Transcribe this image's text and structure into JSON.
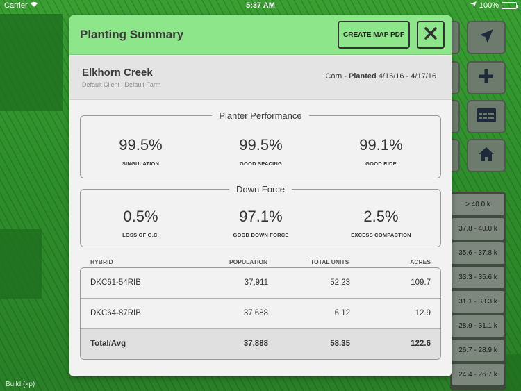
{
  "status_bar": {
    "carrier": "Carrier",
    "time": "5:37 AM",
    "battery": "100%"
  },
  "map": {
    "legend": [
      "> 40.0 k",
      "37.8 - 40.0 k",
      "35.6 - 37.8 k",
      "33.3 - 35.6 k",
      "31.1 - 33.3 k",
      "28.9 - 31.1 k",
      "26.7 - 28.9 k",
      "24.4 - 26.7 k"
    ],
    "build_label": "Build (kp)"
  },
  "modal": {
    "title": "Planting Summary",
    "create_pdf_label": "CREATE MAP PDF",
    "field_name": "Elkhorn Creek",
    "client_farm": "Default Client | Default Farm",
    "crop": "Corn -",
    "planted_label": "Planted",
    "planted_dates": "4/16/16 - 4/17/16",
    "planter_performance": {
      "title": "Planter Performance",
      "metrics": [
        {
          "value": "99.5%",
          "label": "SINGULATION"
        },
        {
          "value": "99.5%",
          "label": "GOOD SPACING"
        },
        {
          "value": "99.1%",
          "label": "GOOD RIDE"
        }
      ]
    },
    "down_force": {
      "title": "Down Force",
      "metrics": [
        {
          "value": "0.5%",
          "label": "LOSS OF G.C."
        },
        {
          "value": "97.1%",
          "label": "GOOD DOWN FORCE"
        },
        {
          "value": "2.5%",
          "label": "EXCESS COMPACTION"
        }
      ]
    },
    "hybrid_table": {
      "headers": {
        "hybrid": "HYBRID",
        "population": "POPULATION",
        "total_units": "TOTAL UNITS",
        "acres": "ACRES"
      },
      "rows": [
        {
          "hybrid": "DKC61-54RIB",
          "population": "37,911",
          "total_units": "52.23",
          "acres": "109.7"
        },
        {
          "hybrid": "DKC64-87RIB",
          "population": "37,688",
          "total_units": "6.12",
          "acres": "12.9"
        }
      ],
      "total": {
        "hybrid": "Total/Avg",
        "population": "37,888",
        "total_units": "58.35",
        "acres": "122.6"
      }
    }
  },
  "icons": [
    "wifi-icon",
    "location-arrow-icon",
    "battery-icon",
    "close-icon",
    "navigate-icon",
    "plus-icon",
    "grid-icon",
    "home-icon"
  ]
}
